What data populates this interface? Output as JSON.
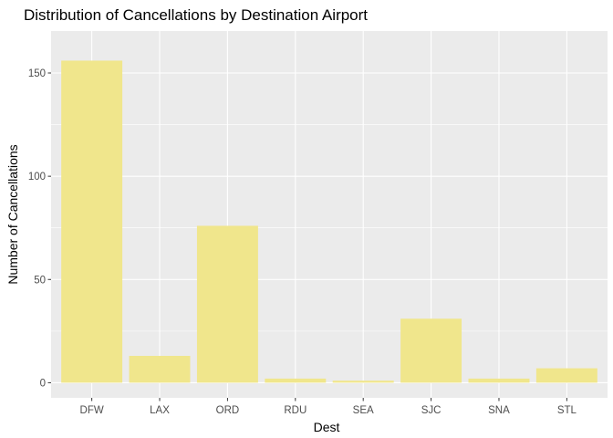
{
  "chart_data": {
    "type": "bar",
    "title": "Distribution of Cancellations by Destination Airport",
    "xlabel": "Dest",
    "ylabel": "Number of Cancellations",
    "categories": [
      "DFW",
      "LAX",
      "ORD",
      "RDU",
      "SEA",
      "SJC",
      "SNA",
      "STL"
    ],
    "values": [
      156,
      13,
      76,
      2,
      1,
      31,
      2,
      7
    ],
    "ylim": [
      0,
      163
    ],
    "y_ticks": [
      0,
      50,
      100,
      150
    ],
    "y_tick_labels": [
      "0",
      "50",
      "100",
      "150"
    ],
    "grid": true,
    "legend": "none",
    "colors": {
      "bar_fill": "#f0e68c",
      "panel_background": "#ebebeb",
      "gridline": "#ffffff"
    }
  }
}
